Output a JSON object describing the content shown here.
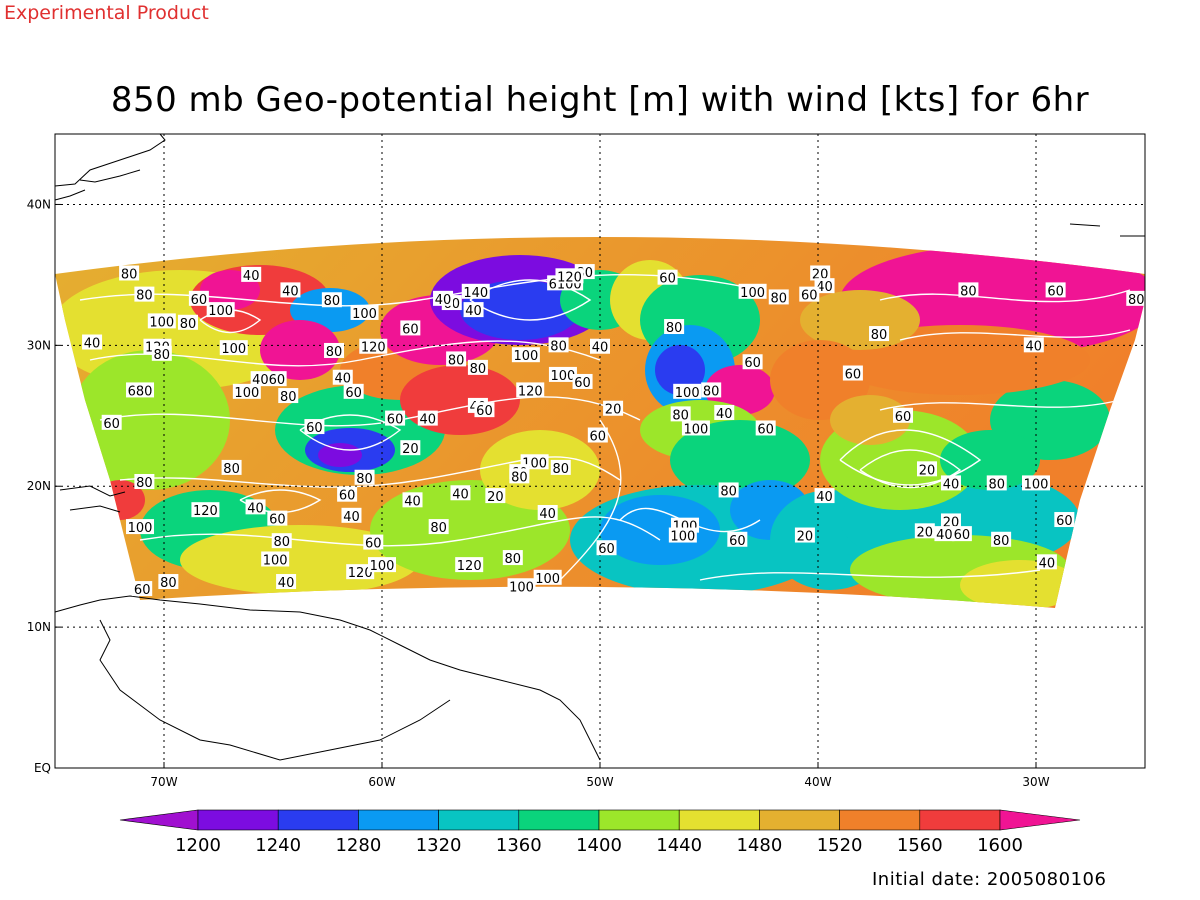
{
  "header": {
    "product_tag": "Experimental Product",
    "title": "850 mb Geo-potential height [m] with wind [kts] for 6hr"
  },
  "footer": {
    "initial_date": "Initial date: 2005080106"
  },
  "map": {
    "lon_range": [
      -75,
      -25
    ],
    "lat_range": [
      0,
      45
    ],
    "lon_ticks": [
      {
        "value": -70,
        "label": "70W"
      },
      {
        "value": -60,
        "label": "60W"
      },
      {
        "value": -50,
        "label": "50W"
      },
      {
        "value": -40,
        "label": "40W"
      },
      {
        "value": -30,
        "label": "30W"
      }
    ],
    "lat_ticks": [
      {
        "value": 0,
        "label": "EQ"
      },
      {
        "value": 10,
        "label": "10N"
      },
      {
        "value": 20,
        "label": "20N"
      },
      {
        "value": 30,
        "label": "30N"
      },
      {
        "value": 40,
        "label": "40N"
      }
    ],
    "grid": true,
    "contour_color": "#ffffff",
    "coast_color": "#000000",
    "contour_labels": [
      {
        "lon": -71.6,
        "lat": 35.1,
        "text": "80"
      },
      {
        "lon": -66.0,
        "lat": 35.0,
        "text": "40"
      },
      {
        "lon": -70.9,
        "lat": 33.6,
        "text": "80"
      },
      {
        "lon": -64.2,
        "lat": 33.9,
        "text": "40"
      },
      {
        "lon": -68.4,
        "lat": 33.3,
        "text": "60"
      },
      {
        "lon": -67.4,
        "lat": 32.5,
        "text": "100"
      },
      {
        "lon": -62.3,
        "lat": 33.2,
        "text": "80"
      },
      {
        "lon": -60.8,
        "lat": 32.3,
        "text": "100"
      },
      {
        "lon": -70.1,
        "lat": 31.7,
        "text": "100"
      },
      {
        "lon": -68.9,
        "lat": 31.6,
        "text": "80"
      },
      {
        "lon": -58.7,
        "lat": 31.2,
        "text": "60"
      },
      {
        "lon": -73.3,
        "lat": 30.2,
        "text": "40"
      },
      {
        "lon": -70.3,
        "lat": 29.9,
        "text": "120"
      },
      {
        "lon": -70.1,
        "lat": 29.4,
        "text": "80"
      },
      {
        "lon": -66.8,
        "lat": 29.8,
        "text": "100"
      },
      {
        "lon": -62.2,
        "lat": 29.6,
        "text": "80"
      },
      {
        "lon": -60.4,
        "lat": 29.9,
        "text": "120"
      },
      {
        "lon": -65.2,
        "lat": 27.6,
        "text": "4060"
      },
      {
        "lon": -61.8,
        "lat": 27.7,
        "text": "40"
      },
      {
        "lon": -66.2,
        "lat": 26.7,
        "text": "100"
      },
      {
        "lon": -64.3,
        "lat": 26.4,
        "text": "80"
      },
      {
        "lon": -61.3,
        "lat": 26.7,
        "text": "60"
      },
      {
        "lon": -71.1,
        "lat": 26.8,
        "text": "680"
      },
      {
        "lon": -72.4,
        "lat": 24.5,
        "text": "60"
      },
      {
        "lon": -63.1,
        "lat": 24.2,
        "text": "60"
      },
      {
        "lon": -59.4,
        "lat": 24.8,
        "text": "60"
      },
      {
        "lon": -57.9,
        "lat": 24.8,
        "text": "40"
      },
      {
        "lon": -58.7,
        "lat": 22.7,
        "text": "20"
      },
      {
        "lon": -66.9,
        "lat": 21.3,
        "text": "80"
      },
      {
        "lon": -70.9,
        "lat": 20.3,
        "text": "80"
      },
      {
        "lon": -60.8,
        "lat": 20.6,
        "text": "80"
      },
      {
        "lon": -61.6,
        "lat": 19.4,
        "text": "60"
      },
      {
        "lon": -56.4,
        "lat": 19.5,
        "text": "40"
      },
      {
        "lon": -58.6,
        "lat": 19.0,
        "text": "40"
      },
      {
        "lon": -54.8,
        "lat": 19.3,
        "text": "20"
      },
      {
        "lon": -68.1,
        "lat": 18.3,
        "text": "120"
      },
      {
        "lon": -65.8,
        "lat": 18.5,
        "text": "40"
      },
      {
        "lon": -64.8,
        "lat": 17.7,
        "text": "60"
      },
      {
        "lon": -61.4,
        "lat": 17.9,
        "text": "40"
      },
      {
        "lon": -71.1,
        "lat": 17.1,
        "text": "100"
      },
      {
        "lon": -57.4,
        "lat": 17.1,
        "text": "80"
      },
      {
        "lon": -52.4,
        "lat": 18.1,
        "text": "40"
      },
      {
        "lon": -64.6,
        "lat": 16.1,
        "text": "80"
      },
      {
        "lon": -60.4,
        "lat": 16.0,
        "text": "60"
      },
      {
        "lon": -64.9,
        "lat": 14.8,
        "text": "100"
      },
      {
        "lon": -61.0,
        "lat": 13.9,
        "text": "120"
      },
      {
        "lon": -60.0,
        "lat": 14.4,
        "text": "100"
      },
      {
        "lon": -56.0,
        "lat": 14.4,
        "text": "120"
      },
      {
        "lon": -54.0,
        "lat": 14.9,
        "text": "80"
      },
      {
        "lon": -52.4,
        "lat": 13.5,
        "text": "100"
      },
      {
        "lon": -53.6,
        "lat": 12.9,
        "text": "100"
      },
      {
        "lon": -64.4,
        "lat": 13.2,
        "text": "40"
      },
      {
        "lon": -69.8,
        "lat": 13.2,
        "text": "80"
      },
      {
        "lon": -71.0,
        "lat": 12.7,
        "text": "60"
      },
      {
        "lon": -49.7,
        "lat": 15.6,
        "text": "60"
      },
      {
        "lon": -46.1,
        "lat": 17.2,
        "text": "100"
      },
      {
        "lon": -46.2,
        "lat": 16.5,
        "text": "100"
      },
      {
        "lon": -43.7,
        "lat": 16.2,
        "text": "60"
      },
      {
        "lon": -40.6,
        "lat": 16.5,
        "text": "20"
      },
      {
        "lon": -44.1,
        "lat": 19.7,
        "text": "80"
      },
      {
        "lon": -39.7,
        "lat": 19.3,
        "text": "40"
      },
      {
        "lon": -55.7,
        "lat": 33.8,
        "text": "140"
      },
      {
        "lon": -56.8,
        "lat": 33.0,
        "text": "60"
      },
      {
        "lon": -55.8,
        "lat": 32.5,
        "text": "40"
      },
      {
        "lon": -57.2,
        "lat": 33.3,
        "text": "40"
      },
      {
        "lon": -51.6,
        "lat": 34.4,
        "text": "6100"
      },
      {
        "lon": -50.7,
        "lat": 35.2,
        "text": "80"
      },
      {
        "lon": -51.4,
        "lat": 34.9,
        "text": "120"
      },
      {
        "lon": -46.9,
        "lat": 34.8,
        "text": "60"
      },
      {
        "lon": -43.0,
        "lat": 33.8,
        "text": "100"
      },
      {
        "lon": -41.8,
        "lat": 33.4,
        "text": "80"
      },
      {
        "lon": -46.6,
        "lat": 31.3,
        "text": "80"
      },
      {
        "lon": -51.9,
        "lat": 30.0,
        "text": "80"
      },
      {
        "lon": -50.0,
        "lat": 29.9,
        "text": "40"
      },
      {
        "lon": -53.4,
        "lat": 29.3,
        "text": "100"
      },
      {
        "lon": -55.6,
        "lat": 28.4,
        "text": "80"
      },
      {
        "lon": -56.6,
        "lat": 29.0,
        "text": "80"
      },
      {
        "lon": -51.7,
        "lat": 27.9,
        "text": "100"
      },
      {
        "lon": -50.8,
        "lat": 27.4,
        "text": "60"
      },
      {
        "lon": -53.2,
        "lat": 26.8,
        "text": "120"
      },
      {
        "lon": -55.6,
        "lat": 25.7,
        "text": "40"
      },
      {
        "lon": -55.3,
        "lat": 25.4,
        "text": "60"
      },
      {
        "lon": -49.4,
        "lat": 25.5,
        "text": "20"
      },
      {
        "lon": -50.1,
        "lat": 23.6,
        "text": "60"
      },
      {
        "lon": -46.0,
        "lat": 26.7,
        "text": "100"
      },
      {
        "lon": -44.9,
        "lat": 26.8,
        "text": "80"
      },
      {
        "lon": -46.3,
        "lat": 25.1,
        "text": "80"
      },
      {
        "lon": -44.3,
        "lat": 25.2,
        "text": "40"
      },
      {
        "lon": -45.6,
        "lat": 24.1,
        "text": "100"
      },
      {
        "lon": -42.4,
        "lat": 24.1,
        "text": "60"
      },
      {
        "lon": -43.0,
        "lat": 28.8,
        "text": "60"
      },
      {
        "lon": -53.0,
        "lat": 21.7,
        "text": "100"
      },
      {
        "lon": -53.7,
        "lat": 21.0,
        "text": "60"
      },
      {
        "lon": -53.7,
        "lat": 20.7,
        "text": "80"
      },
      {
        "lon": -51.8,
        "lat": 21.3,
        "text": "80"
      },
      {
        "lon": -39.9,
        "lat": 35.1,
        "text": "20"
      },
      {
        "lon": -39.7,
        "lat": 34.2,
        "text": "40"
      },
      {
        "lon": -40.4,
        "lat": 33.6,
        "text": "60"
      },
      {
        "lon": -33.1,
        "lat": 33.9,
        "text": "80"
      },
      {
        "lon": -29.1,
        "lat": 33.9,
        "text": "60"
      },
      {
        "lon": -25.4,
        "lat": 33.3,
        "text": "80"
      },
      {
        "lon": -37.2,
        "lat": 30.8,
        "text": "80"
      },
      {
        "lon": -30.1,
        "lat": 30.0,
        "text": "40"
      },
      {
        "lon": -38.4,
        "lat": 28.0,
        "text": "60"
      },
      {
        "lon": -36.1,
        "lat": 25.0,
        "text": "60"
      },
      {
        "lon": -35.0,
        "lat": 21.2,
        "text": "20"
      },
      {
        "lon": -33.9,
        "lat": 20.2,
        "text": "40"
      },
      {
        "lon": -31.8,
        "lat": 20.2,
        "text": "80"
      },
      {
        "lon": -30.0,
        "lat": 20.2,
        "text": "100"
      },
      {
        "lon": -33.9,
        "lat": 17.5,
        "text": "20"
      },
      {
        "lon": -35.1,
        "lat": 16.8,
        "text": "20"
      },
      {
        "lon": -34.2,
        "lat": 16.6,
        "text": "40"
      },
      {
        "lon": -33.4,
        "lat": 16.6,
        "text": "60"
      },
      {
        "lon": -31.6,
        "lat": 16.2,
        "text": "80"
      },
      {
        "lon": -28.7,
        "lat": 17.6,
        "text": "60"
      },
      {
        "lon": -29.5,
        "lat": 14.6,
        "text": "40"
      }
    ]
  },
  "colorbar": {
    "levels": [
      1200,
      1240,
      1280,
      1320,
      1360,
      1400,
      1440,
      1480,
      1520,
      1560,
      1600
    ],
    "labels": [
      "1200",
      "1240",
      "1280",
      "1320",
      "1360",
      "1400",
      "1440",
      "1480",
      "1520",
      "1560",
      "1600"
    ],
    "colors": [
      "#a010d0",
      "#7c0ce0",
      "#2a3cf0",
      "#0a9af2",
      "#08c4c2",
      "#0ad47c",
      "#9ce62a",
      "#e4e030",
      "#e4b030",
      "#f0802a",
      "#f03c3c",
      "#f01494"
    ],
    "extend": "both"
  }
}
